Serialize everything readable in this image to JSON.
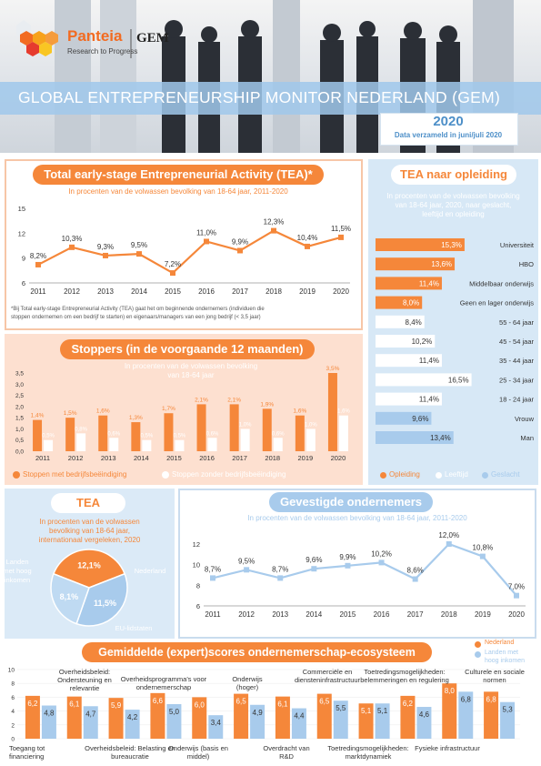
{
  "header": {
    "logo_name": "Panteia",
    "logo_sub": "Research to Progress",
    "gem_logo": "GEM",
    "title": "GLOBAL ENTREPRENEURSHIP MONITOR NEDERLAND (GEM)",
    "year": "2020",
    "year_sub": "Data verzameld in juni/juli 2020"
  },
  "colors": {
    "orange": "#f5873a",
    "light_orange": "#fde0d0",
    "blue": "#a8cbec",
    "light_blue": "#d7e8f6"
  },
  "tea": {
    "title": "Total early-stage Entrepreneurial Activity (TEA)*",
    "subtitle": "In procenten van de volwassen bevolking van 18-64 jaar, 2011-2020",
    "footnote_1": "*Bij Total early-stage Entrepreneurial Activity (TEA) gaat het om beginnende ondernemers (individuen die",
    "footnote_2": "stoppen ondernemen om een bedrijf te starten) en eigenaars/managers van een jong bedrijf (< 3,5 jaar)"
  },
  "stoppers": {
    "title": "Stoppers (in de voorgaande 12 maanden)",
    "subtitle_1": "In procenten van de volwassen bevolking",
    "subtitle_2": "van 18-64 jaar",
    "legend_1": "Stoppen met bedrijfsbeëindiging",
    "legend_2": "Stoppen zonder bedrijfsbeëindiging"
  },
  "opleiding": {
    "title": "TEA naar opleiding",
    "subtitle_1": "In procenten van de volwassen bevolking",
    "subtitle_2": "van 18-64 jaar, 2020, naar geslacht,",
    "subtitle_3": "leeftijd en opleiding",
    "legend_1": "Opleiding",
    "legend_2": "Leeftijd",
    "legend_3": "Geslacht"
  },
  "tea_int": {
    "title": "TEA",
    "subtitle_1": "In procenten van de volwassen",
    "subtitle_2": "bevolking van 18-64 jaar,",
    "subtitle_3": "internationaal vergeleken, 2020"
  },
  "gevestigd": {
    "title": "Gevestigde ondernemers",
    "subtitle": "In procenten van de volwassen bevolking van 18-64 jaar, 2011-2020"
  },
  "scores": {
    "title": "Gemiddelde (expert)scores ondernemerschap-ecosysteem",
    "legend_1": "Nederland",
    "legend_2": "Landen met",
    "legend_3": "hoog inkomen"
  },
  "chart_data": [
    {
      "id": "tea-line",
      "type": "line",
      "title": "Total early-stage Entrepreneurial Activity (TEA)*",
      "x": [
        "2011",
        "2012",
        "2013",
        "2014",
        "2015",
        "2016",
        "2017",
        "2018",
        "2019",
        "2020"
      ],
      "values": [
        8.2,
        10.3,
        9.3,
        9.5,
        7.2,
        11.0,
        9.9,
        12.3,
        10.4,
        11.5
      ],
      "labels": [
        "8,2%",
        "10,3%",
        "9,3%",
        "9,5%",
        "7,2%",
        "11,0%",
        "9,9%",
        "12,3%",
        "10,4%",
        "11,5%"
      ],
      "yticks": [
        "6",
        "9",
        "12",
        "15"
      ],
      "ylim": [
        6,
        15
      ]
    },
    {
      "id": "stoppers-bar",
      "type": "bar",
      "title": "Stoppers (in de voorgaande 12 maanden)",
      "categories": [
        "2011",
        "2012",
        "2013",
        "2014",
        "2015",
        "2016",
        "2017",
        "2018",
        "2019",
        "2020"
      ],
      "series": [
        {
          "name": "Stoppen met bedrijfsbeëindiging",
          "values": [
            1.4,
            1.5,
            1.6,
            1.3,
            1.7,
            2.1,
            2.1,
            1.9,
            1.6,
            3.5
          ],
          "labels": [
            "1,4%",
            "1,5%",
            "1,6%",
            "1,3%",
            "1,7%",
            "2,1%",
            "2,1%",
            "1,9%",
            "1,6%",
            "3,5%"
          ]
        },
        {
          "name": "Stoppen zonder bedrijfsbeëindiging",
          "values": [
            0.5,
            0.8,
            0.6,
            0.5,
            0.5,
            0.6,
            1.0,
            0.6,
            1.0,
            1.6
          ],
          "labels": [
            "0,5%",
            "0,8%",
            "0,6%",
            "0,5%",
            "0,5%",
            "0,6%",
            "1,0%",
            "0,6%",
            "1,0%",
            "1,6%"
          ]
        }
      ],
      "yticks": [
        "0,0",
        "0,5",
        "1,0",
        "1,5",
        "2,0",
        "2,5",
        "3,0",
        "3,5"
      ],
      "ylim": [
        0,
        3.5
      ]
    },
    {
      "id": "opleiding-hbar",
      "type": "bar",
      "title": "TEA naar opleiding",
      "categories": [
        "Universiteit",
        "HBO",
        "Middelbaar onderwijs",
        "Geen en lager onderwijs",
        "55 - 64 jaar",
        "45 - 54 jaar",
        "35 - 44 jaar",
        "25 - 34 jaar",
        "18 - 24 jaar",
        "Vrouw",
        "Man"
      ],
      "values": [
        15.3,
        13.6,
        11.4,
        8.0,
        8.4,
        10.2,
        11.4,
        16.5,
        11.4,
        9.6,
        13.4
      ],
      "labels": [
        "15,3%",
        "13,6%",
        "11,4%",
        "8,0%",
        "8,4%",
        "10,2%",
        "11,4%",
        "16,5%",
        "11,4%",
        "9,6%",
        "13,4%"
      ],
      "groups": [
        "opleiding",
        "opleiding",
        "opleiding",
        "opleiding",
        "leeftijd",
        "leeftijd",
        "leeftijd",
        "leeftijd",
        "leeftijd",
        "geslacht",
        "geslacht"
      ],
      "xmax": 20
    },
    {
      "id": "tea-pie",
      "type": "pie",
      "title": "TEA",
      "categories": [
        "Landen met hoog inkomen",
        "Nederland",
        "EU-lidstaten"
      ],
      "values": [
        12.1,
        11.5,
        8.1
      ],
      "labels": [
        "12,1%",
        "11,5%",
        "8,1%"
      ]
    },
    {
      "id": "gevestigd-line",
      "type": "line",
      "title": "Gevestigde ondernemers",
      "x": [
        "2011",
        "2012",
        "2013",
        "2014",
        "2015",
        "2016",
        "2017",
        "2018",
        "2019",
        "2020"
      ],
      "values": [
        8.7,
        9.5,
        8.7,
        9.6,
        9.9,
        10.2,
        8.6,
        12.0,
        10.8,
        7.0
      ],
      "labels": [
        "8,7%",
        "9,5%",
        "8,7%",
        "9,6%",
        "9,9%",
        "10,2%",
        "8,6%",
        "12,0%",
        "10,8%",
        "7,0%"
      ],
      "yticks": [
        "6",
        "8",
        "10",
        "12"
      ],
      "ylim": [
        6,
        12
      ]
    },
    {
      "id": "scores-bar",
      "type": "bar",
      "title": "Gemiddelde (expert)scores ondernemerschap-ecosysteem",
      "categories": [
        "Toegang tot financiering",
        "Overheidsbeleid: Ondersteuning en relevantie",
        "Overheidsbeleid: Belasting en bureaucratie",
        "Overheidsprogramma's voor ondernemerschap",
        "Onderwijs (basis en middel)",
        "Onderwijs (hoger)",
        "Overdracht van R&D",
        "Commerciële en diensteninfrastructuur",
        "Toetredingsmogelijkheden: marktdynamiek",
        "Toetredingsmogelijkheden: belemmeringen en regulering",
        "Fysieke infrastructuur",
        "Culturele en sociale normen"
      ],
      "series": [
        {
          "name": "Nederland",
          "values": [
            6.2,
            6.1,
            5.9,
            6.6,
            6.0,
            6.5,
            6.1,
            6.5,
            5.1,
            6.2,
            8.0,
            6.8
          ],
          "labels": [
            "6,2",
            "6,1",
            "5,9",
            "6,6",
            "6,0",
            "6,5",
            "6,1",
            "6,5",
            "5,1",
            "6,2",
            "8,0",
            "6,8"
          ]
        },
        {
          "name": "Landen met hoog inkomen",
          "values": [
            4.8,
            4.7,
            4.2,
            5.0,
            3.4,
            4.9,
            4.4,
            5.5,
            5.1,
            4.6,
            6.8,
            5.3
          ],
          "labels": [
            "4,8",
            "4,7",
            "4,2",
            "5,0",
            "3,4",
            "4,9",
            "4,4",
            "5,5",
            "5,1",
            "4,6",
            "6,8",
            "5,3"
          ]
        }
      ],
      "yticks": [
        "0",
        "2",
        "4",
        "6",
        "8",
        "10"
      ],
      "ylim": [
        0,
        10
      ]
    }
  ]
}
